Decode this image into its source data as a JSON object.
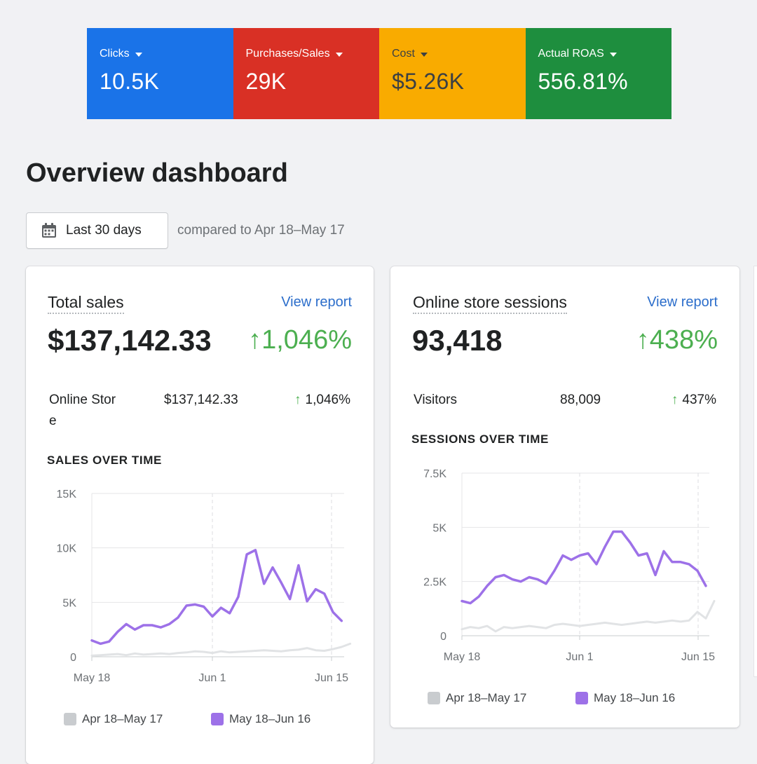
{
  "metrics": [
    {
      "label": "Clicks",
      "value": "10.5K"
    },
    {
      "label": "Purchases/Sales",
      "value": "29K"
    },
    {
      "label": "Cost",
      "value": "$5.26K"
    },
    {
      "label": "Actual ROAS",
      "value": "556.81%"
    }
  ],
  "colors": {
    "clicks": "#1a73e8",
    "purchases": "#d93025",
    "cost": "#f9ab00",
    "roas": "#1e8e3e",
    "current_series": "#9d71e8",
    "previous_series": "#e1e3e5",
    "positive": "#4caf50",
    "link": "#2c6ecb"
  },
  "page": {
    "title": "Overview dashboard"
  },
  "date_range": {
    "label": "Last 30 days",
    "icon": "calendar-icon",
    "compare_text": "compared to Apr 18–May 17"
  },
  "total_sales": {
    "title": "Total sales",
    "view_report": "View report",
    "value": "$137,142.33",
    "change": "1,046%",
    "breakdown": {
      "label_line1": "Online Stor",
      "label_line2": "e",
      "value": "$137,142.33",
      "change": "1,046%"
    },
    "chart_title": "SALES OVER TIME",
    "legend": [
      "Apr 18–May 17",
      "May 18–Jun 16"
    ]
  },
  "sessions": {
    "title": "Online store sessions",
    "view_report": "View report",
    "value": "93,418",
    "change": "438%",
    "breakdown": {
      "label": "Visitors",
      "value": "88,009",
      "change": "437%"
    },
    "chart_title": "SESSIONS OVER TIME",
    "legend": [
      "Apr 18–May 17",
      "May 18–Jun 16"
    ]
  },
  "chart_data": [
    {
      "type": "line",
      "title": "SALES OVER TIME",
      "x_ticks": [
        "May 18",
        "Jun 1",
        "Jun 15"
      ],
      "y_ticks": [
        "0",
        "5K",
        "10K",
        "15K"
      ],
      "ylim": [
        0,
        15000
      ],
      "grid": true,
      "legend_position": "bottom",
      "series": [
        {
          "name": "Apr 18–May 17",
          "values": [
            100,
            150,
            200,
            250,
            150,
            300,
            200,
            250,
            300,
            250,
            350,
            400,
            500,
            450,
            350,
            500,
            400,
            450,
            500,
            550,
            600,
            550,
            500,
            600,
            650,
            800,
            600,
            550,
            700,
            900,
            1200
          ]
        },
        {
          "name": "May 18–Jun 16",
          "values": [
            1500,
            1200,
            1400,
            2300,
            3000,
            2500,
            2900,
            2900,
            2700,
            3000,
            3600,
            4700,
            4800,
            4600,
            3700,
            4500,
            4000,
            5500,
            9400,
            9800,
            6700,
            8200,
            6800,
            5300,
            8400,
            5100,
            6200,
            5800,
            4100,
            3300
          ]
        }
      ]
    },
    {
      "type": "line",
      "title": "SESSIONS OVER TIME",
      "x_ticks": [
        "May 18",
        "Jun 1",
        "Jun 15"
      ],
      "y_ticks": [
        "0",
        "2.5K",
        "5K",
        "7.5K"
      ],
      "ylim": [
        0,
        7500
      ],
      "grid": true,
      "legend_position": "bottom",
      "series": [
        {
          "name": "Apr 18–May 17",
          "values": [
            300,
            400,
            350,
            450,
            200,
            400,
            350,
            400,
            450,
            400,
            350,
            500,
            550,
            500,
            450,
            500,
            550,
            600,
            550,
            500,
            550,
            600,
            650,
            600,
            650,
            700,
            650,
            700,
            1100,
            800,
            1600
          ]
        },
        {
          "name": "May 18–Jun 16",
          "values": [
            1600,
            1500,
            1800,
            2300,
            2700,
            2800,
            2600,
            2500,
            2700,
            2600,
            2400,
            3000,
            3700,
            3500,
            3700,
            3800,
            3300,
            4100,
            4800,
            4800,
            4300,
            3700,
            3800,
            2800,
            3900,
            3400,
            3400,
            3300,
            3000,
            2300
          ]
        }
      ]
    }
  ]
}
